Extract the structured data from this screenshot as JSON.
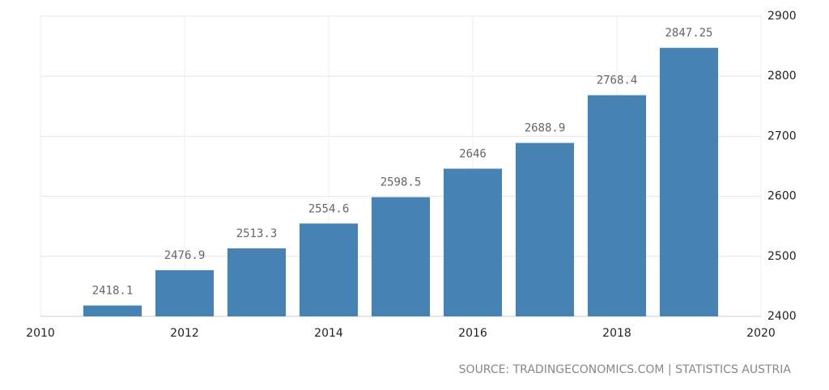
{
  "chart_data": {
    "type": "bar",
    "x": [
      2011,
      2012,
      2013,
      2014,
      2015,
      2016,
      2017,
      2018,
      2019
    ],
    "values": [
      2418.1,
      2476.9,
      2513.3,
      2554.6,
      2598.5,
      2646,
      2688.9,
      2768.4,
      2847.25
    ],
    "color": "#4682b4",
    "xlim": [
      2010,
      2020
    ],
    "xticks": [
      2010,
      2012,
      2014,
      2016,
      2018,
      2020
    ],
    "ylim": [
      2400,
      2900
    ],
    "yticks": [
      2400,
      2500,
      2600,
      2700,
      2800,
      2900
    ],
    "grid": true,
    "source": "SOURCE: TRADINGECONOMICS.COM | STATISTICS AUSTRIA"
  }
}
